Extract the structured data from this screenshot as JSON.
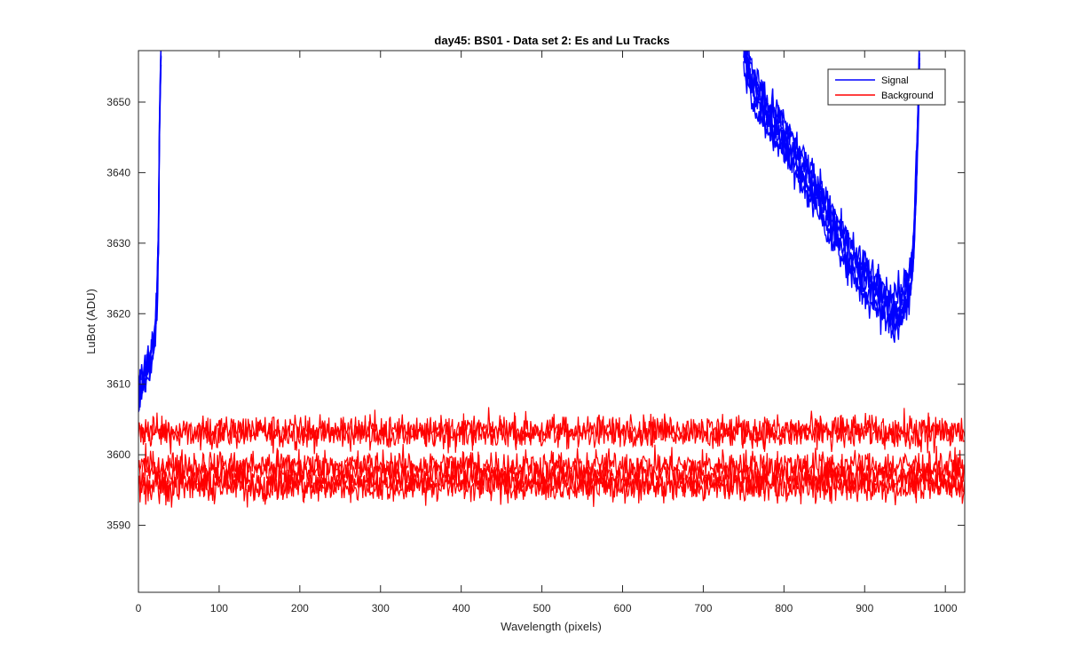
{
  "chart_data": {
    "type": "line",
    "title": "day45: BS01 - Data set 2: Es and Lu Tracks",
    "xlabel": "Wavelength (pixels)",
    "ylabel": "LuBot (ADU)",
    "xlim": [
      0,
      1024
    ],
    "ylim": [
      3580.5,
      3657.3
    ],
    "xticks": [
      0,
      100,
      200,
      300,
      400,
      500,
      600,
      700,
      800,
      900,
      1000
    ],
    "yticks": [
      3590,
      3600,
      3610,
      3620,
      3630,
      3640,
      3650
    ],
    "grid": false,
    "legend_position": "top-right",
    "series": [
      {
        "name": "Signal",
        "color": "#0000ff",
        "x": [
          0,
          5,
          10,
          15,
          20,
          23,
          25,
          26,
          28,
          750,
          760,
          780,
          800,
          820,
          840,
          860,
          880,
          900,
          920,
          935,
          945,
          955,
          960,
          963,
          966,
          968
        ],
        "y": [
          3609,
          3610,
          3612,
          3613,
          3616,
          3622,
          3632,
          3645,
          3658,
          3658,
          3653,
          3648,
          3645,
          3641,
          3637,
          3633,
          3628,
          3625,
          3622,
          3620,
          3621,
          3624,
          3628,
          3636,
          3648,
          3658
        ],
        "copies": 6,
        "copy_spread": 2.2,
        "noise": 1.3
      },
      {
        "name": "Background",
        "color": "#ff0000",
        "x": [
          0,
          1024
        ],
        "levels": [
          3603,
          3603.5,
          3598.5,
          3597.5,
          3596,
          3595.5
        ],
        "noise": 1.2
      }
    ]
  },
  "legend": {
    "entries": [
      "Signal",
      "Background"
    ]
  }
}
